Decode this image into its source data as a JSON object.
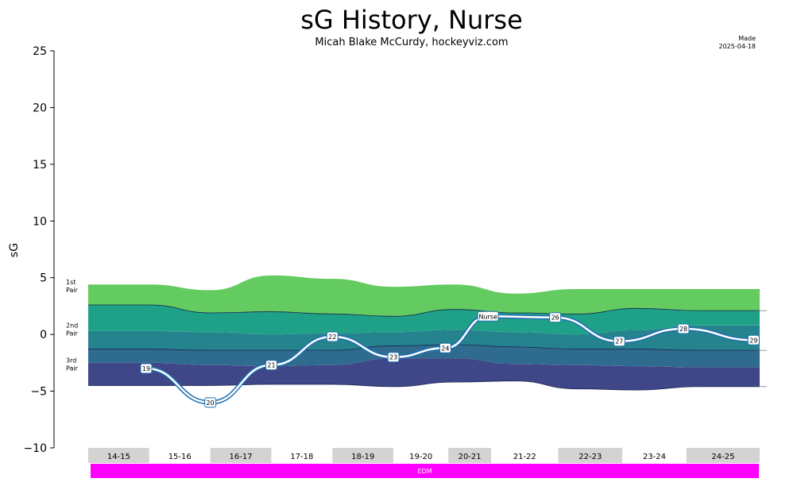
{
  "chart_data": {
    "type": "line",
    "title": "sG History, Nurse",
    "subtitle": "Micah Blake McCurdy, hockeyviz.com",
    "made_label": "Made",
    "made_date": "2025-04-18",
    "ylabel": "sG",
    "ylim": [
      -10,
      25
    ],
    "yticks": [
      "25",
      "20",
      "15",
      "10",
      "5",
      "0",
      "−5",
      "−10"
    ],
    "ytick_values": [
      25,
      20,
      15,
      10,
      5,
      0,
      -5,
      -10
    ],
    "x_range": [
      0,
      11
    ],
    "seasons": [
      {
        "label": "14-15",
        "start": 0,
        "end": 1,
        "shaded": true
      },
      {
        "label": "15-16",
        "start": 1,
        "end": 2,
        "shaded": false
      },
      {
        "label": "16-17",
        "start": 2,
        "end": 3,
        "shaded": true
      },
      {
        "label": "17-18",
        "start": 3,
        "end": 4,
        "shaded": false
      },
      {
        "label": "18-19",
        "start": 4,
        "end": 5,
        "shaded": true
      },
      {
        "label": "19-20",
        "start": 5,
        "end": 5.9,
        "shaded": false
      },
      {
        "label": "20-21",
        "start": 5.9,
        "end": 6.6,
        "shaded": true
      },
      {
        "label": "21-22",
        "start": 6.6,
        "end": 7.7,
        "shaded": false
      },
      {
        "label": "22-23",
        "start": 7.7,
        "end": 8.75,
        "shaded": true
      },
      {
        "label": "23-24",
        "start": 8.75,
        "end": 9.8,
        "shaded": false
      },
      {
        "label": "24-25",
        "start": 9.8,
        "end": 11,
        "shaded": true
      }
    ],
    "team": {
      "label": "EDM",
      "color": "#ff00ff",
      "start": 0,
      "end": 11
    },
    "band_labels": [
      {
        "line1": "1st",
        "line2": "Pair",
        "y": 4.0
      },
      {
        "line1": "2nd",
        "line2": "Pair",
        "y": 0.2
      },
      {
        "line1": "3rd",
        "line2": "Pair",
        "y": -2.9
      }
    ],
    "band_x": [
      0,
      1,
      2,
      3,
      4,
      5,
      6,
      7,
      8,
      9,
      10,
      11
    ],
    "band_layers": [
      {
        "color": "#3f4788",
        "lower": [
          -4.5,
          -4.5,
          -4.5,
          -4.4,
          -4.4,
          -4.6,
          -4.2,
          -4.1,
          -4.8,
          -4.9,
          -4.6,
          -4.6
        ],
        "upper": [
          -2.5,
          -2.5,
          -2.7,
          -2.8,
          -2.7,
          -2.1,
          -2.1,
          -2.6,
          -2.7,
          -2.8,
          -2.9,
          -2.9
        ]
      },
      {
        "color": "#2f6b8e",
        "lower": [
          -2.5,
          -2.5,
          -2.7,
          -2.8,
          -2.7,
          -2.1,
          -2.1,
          -2.6,
          -2.7,
          -2.8,
          -2.9,
          -2.9
        ],
        "upper": [
          -1.3,
          -1.3,
          -1.4,
          -1.4,
          -1.4,
          -1.0,
          -0.9,
          -1.1,
          -1.3,
          -1.3,
          -1.4,
          -1.4
        ]
      },
      {
        "color": "#25838e",
        "lower": [
          -1.3,
          -1.3,
          -1.4,
          -1.4,
          -1.4,
          -1.0,
          -0.9,
          -1.1,
          -1.3,
          -1.3,
          -1.4,
          -1.4
        ],
        "upper": [
          0.3,
          0.3,
          0.2,
          0.0,
          0.1,
          0.2,
          0.4,
          0.2,
          0.0,
          0.4,
          0.8,
          0.8
        ]
      },
      {
        "color": "#1fa187",
        "lower": [
          0.3,
          0.3,
          0.2,
          0.0,
          0.1,
          0.2,
          0.4,
          0.2,
          0.0,
          0.4,
          0.8,
          0.8
        ],
        "upper": [
          2.6,
          2.6,
          1.9,
          2.0,
          1.8,
          1.6,
          2.2,
          1.9,
          1.8,
          2.3,
          2.1,
          2.1
        ]
      },
      {
        "color": "#63cb5f",
        "lower": [
          2.6,
          2.6,
          1.9,
          2.0,
          1.8,
          1.6,
          2.2,
          1.9,
          1.8,
          2.3,
          2.1,
          2.1
        ],
        "upper": [
          4.4,
          4.4,
          3.9,
          5.2,
          4.9,
          4.2,
          4.4,
          3.6,
          4.0,
          4.0,
          4.0,
          4.0
        ]
      }
    ],
    "series": [
      {
        "x": [
          0.95,
          2.0,
          3.0,
          4.0,
          5.0,
          5.85,
          6.55,
          7.65,
          8.7,
          9.75,
          10.9
        ],
        "y": [
          -3.0,
          -6.0,
          -2.7,
          -0.2,
          -2.0,
          -1.2,
          1.6,
          1.5,
          -0.6,
          0.5,
          -0.5
        ],
        "labels": [
          "19",
          "20",
          "21",
          "22",
          "23",
          "24",
          "Nurse",
          "26",
          "27",
          "28",
          "29"
        ]
      }
    ]
  }
}
